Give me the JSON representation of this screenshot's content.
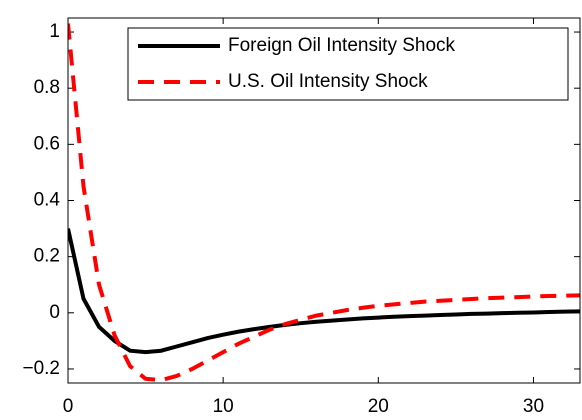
{
  "chart_data": {
    "type": "line",
    "x": [
      0,
      1,
      2,
      3,
      4,
      5,
      6,
      7,
      8,
      9,
      10,
      11,
      12,
      13,
      14,
      15,
      16,
      17,
      18,
      19,
      20,
      21,
      22,
      23,
      24,
      25,
      26,
      27,
      28,
      29,
      30,
      31,
      32,
      33
    ],
    "series": [
      {
        "name": "Foreign Oil Intensity Shock",
        "color": "#000000",
        "dash": "solid",
        "values": [
          0.3,
          0.05,
          -0.05,
          -0.1,
          -0.135,
          -0.14,
          -0.135,
          -0.12,
          -0.105,
          -0.09,
          -0.078,
          -0.067,
          -0.058,
          -0.05,
          -0.043,
          -0.037,
          -0.032,
          -0.028,
          -0.024,
          -0.02,
          -0.017,
          -0.014,
          -0.012,
          -0.01,
          -0.008,
          -0.006,
          -0.004,
          -0.003,
          -0.001,
          0,
          0.001,
          0.003,
          0.004,
          0.005
        ]
      },
      {
        "name": "U.S. Oil Intensity Shock",
        "color": "#ff0000",
        "dash": "dashed",
        "values": [
          1.03,
          0.45,
          0.1,
          -0.08,
          -0.19,
          -0.235,
          -0.24,
          -0.225,
          -0.2,
          -0.17,
          -0.14,
          -0.11,
          -0.085,
          -0.06,
          -0.04,
          -0.025,
          -0.01,
          0,
          0.01,
          0.018,
          0.025,
          0.03,
          0.035,
          0.04,
          0.043,
          0.046,
          0.049,
          0.052,
          0.054,
          0.056,
          0.058,
          0.06,
          0.061,
          0.062
        ]
      }
    ],
    "xlim": [
      0,
      33
    ],
    "xticks": [
      0,
      10,
      20,
      30
    ],
    "ylim": [
      -0.25,
      1.05
    ],
    "yticks": [
      {
        "value": -0.2,
        "label": "−0.2"
      },
      0,
      0.2,
      0.4,
      0.6,
      0.8,
      1
    ],
    "legend": "top-right",
    "grid": false
  }
}
